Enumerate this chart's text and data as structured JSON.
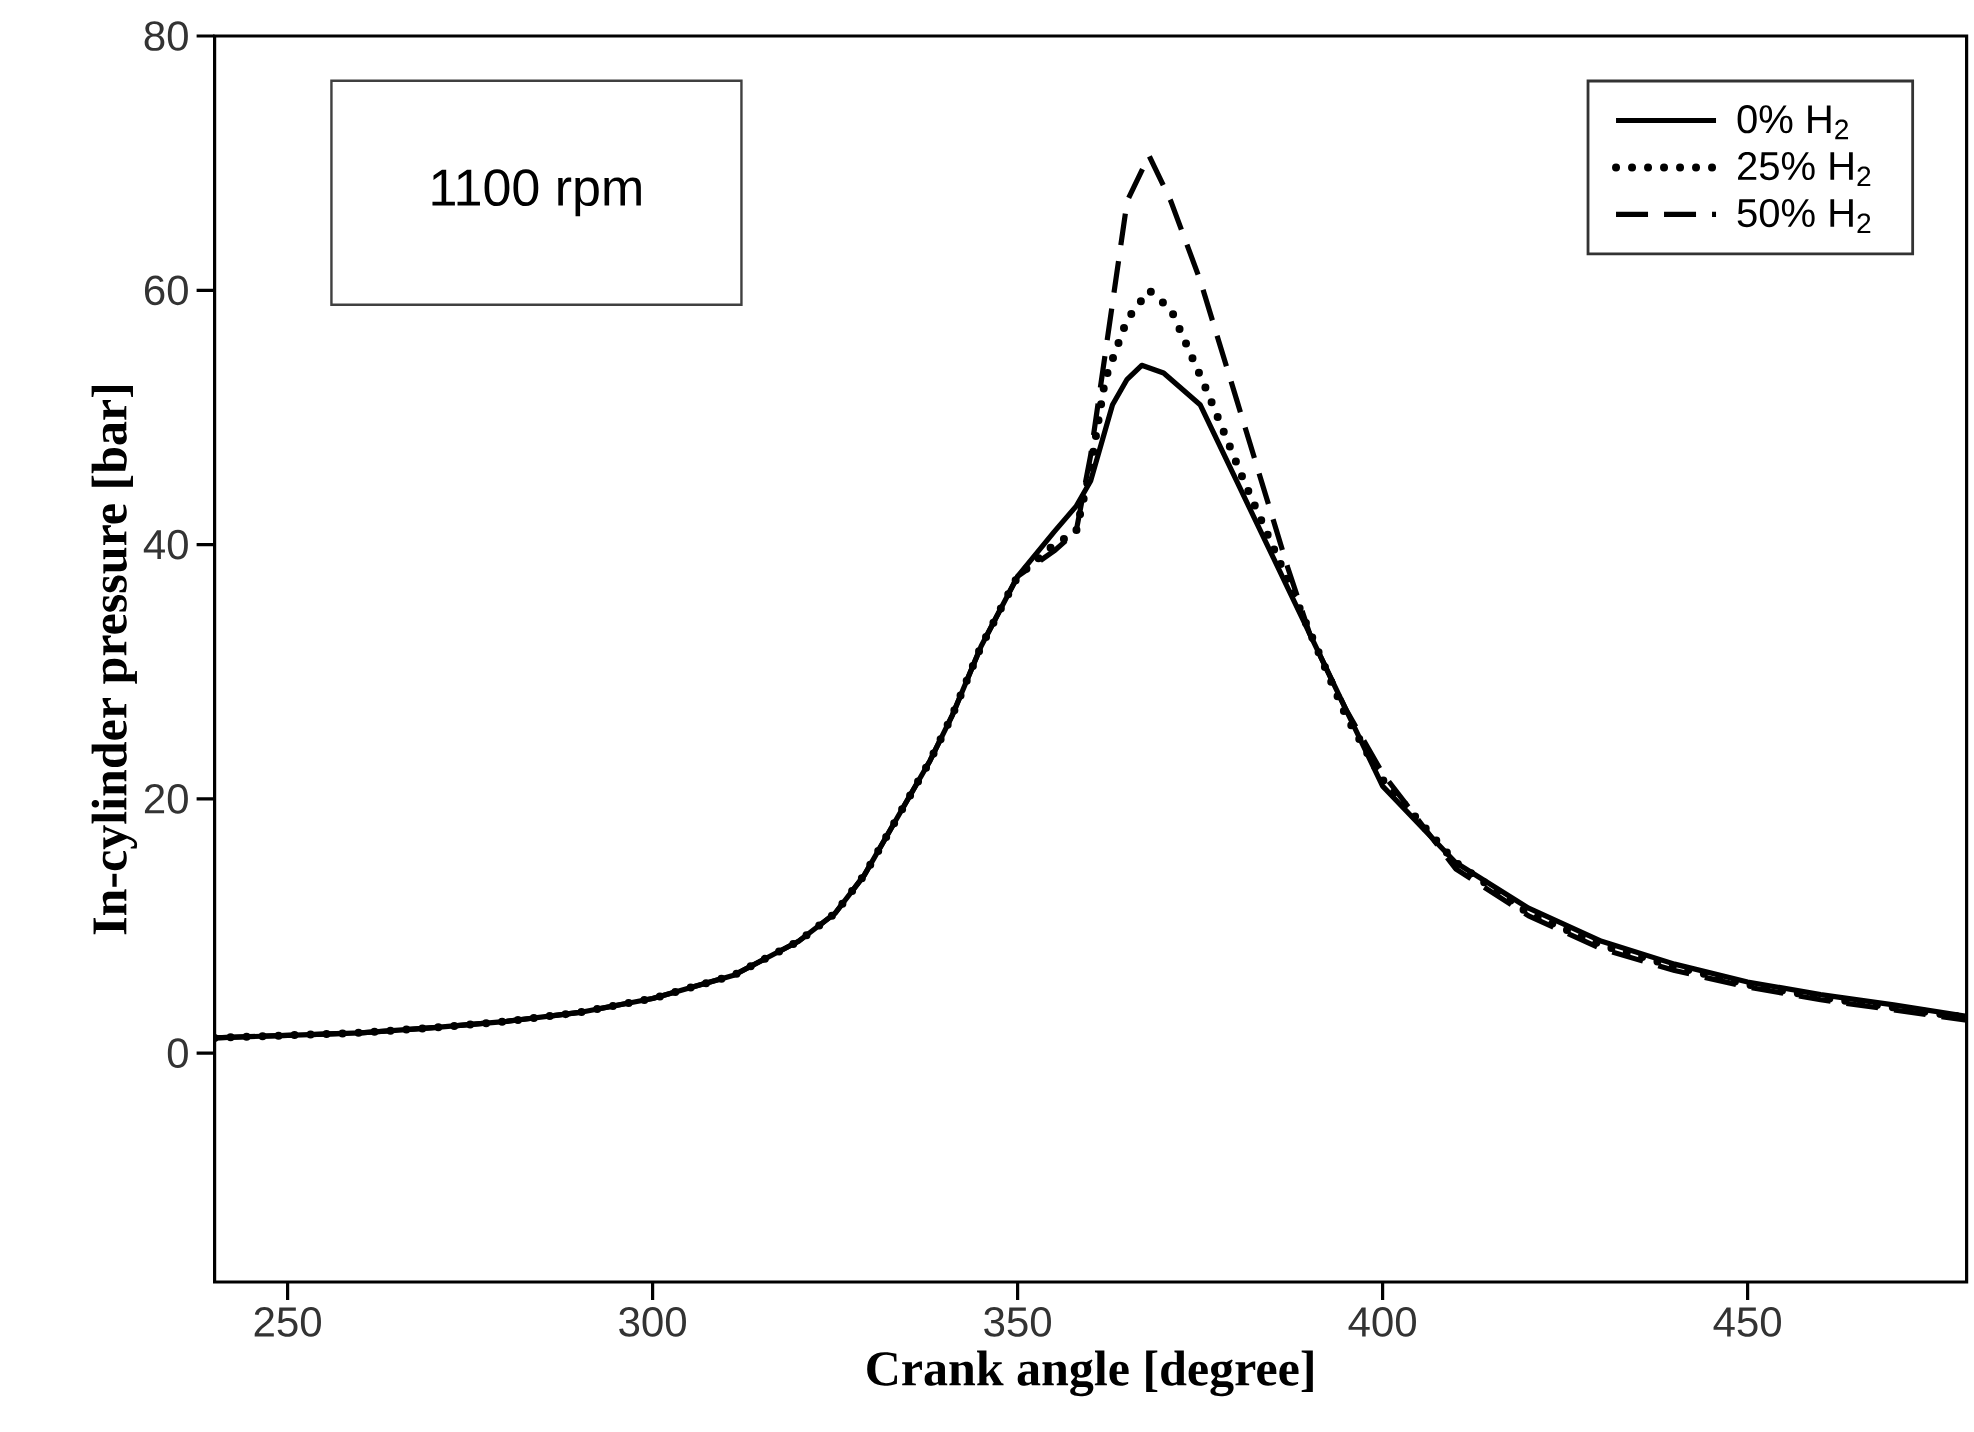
{
  "chart_data": {
    "type": "line",
    "xlabel": "Crank angle [degree]",
    "ylabel": "In-cylinder pressure [bar]",
    "annotations": [
      "1100 rpm"
    ],
    "xlim": [
      240,
      480
    ],
    "xticks": [
      250,
      300,
      350,
      400,
      450
    ],
    "ylim": [
      -18,
      80
    ],
    "yticks": [
      0,
      20,
      40,
      60,
      80
    ],
    "grid": false,
    "legend": "top right",
    "marker": "none",
    "series": [
      {
        "name": "0% H$_{2}$",
        "color": "#000000",
        "line_style": "solid",
        "x": [
          240,
          250,
          260,
          270,
          280,
          290,
          300,
          311,
          320,
          325,
          329,
          333,
          338,
          341,
          345,
          350,
          355,
          358,
          360,
          363,
          365,
          367,
          370,
          375,
          380,
          387,
          395,
          400,
          410,
          420,
          430,
          440,
          450,
          460,
          470,
          480
        ],
        "values": [
          1.2,
          1.4,
          1.6,
          2.0,
          2.5,
          3.2,
          4.3,
          6.1,
          8.8,
          11,
          14,
          18,
          23,
          26.5,
          32,
          37.5,
          41,
          43,
          45,
          51,
          53,
          54.1,
          53.5,
          51,
          45,
          36.6,
          27,
          21,
          15,
          11.4,
          8.8,
          7,
          5.6,
          4.6,
          3.8,
          2.9
        ]
      },
      {
        "name": "25% H$_{2}$",
        "color": "#000000",
        "line_style": "dotted",
        "x": [
          240,
          250,
          260,
          270,
          280,
          290,
          300,
          311,
          320,
          325,
          329,
          333,
          338,
          341,
          345,
          350,
          355,
          358,
          360,
          362,
          365,
          368,
          371,
          376,
          381,
          387,
          389,
          395,
          400,
          410,
          420,
          430,
          440,
          450,
          460,
          470,
          480
        ],
        "values": [
          1.2,
          1.4,
          1.6,
          2.0,
          2.5,
          3.2,
          4.3,
          6.1,
          8.8,
          11,
          14,
          18,
          23,
          26.5,
          32,
          37.5,
          40,
          41,
          46,
          53,
          57.7,
          60,
          58.5,
          52,
          45,
          37.2,
          34.5,
          26.5,
          21.5,
          15,
          11,
          8.5,
          6.8,
          5.4,
          4.4,
          3.6,
          2.8
        ]
      },
      {
        "name": "50% H$_{2}$",
        "color": "#000000",
        "line_style": "dashed",
        "x": [
          240,
          250,
          260,
          270,
          280,
          290,
          300,
          311,
          320,
          325,
          329,
          333,
          338,
          341,
          345,
          350,
          355,
          358,
          360,
          362,
          365,
          368,
          371,
          375,
          380,
          387,
          390,
          395,
          400,
          410,
          420,
          430,
          440,
          450,
          460,
          470,
          480
        ],
        "values": [
          1.2,
          1.4,
          1.6,
          2.0,
          2.5,
          3.2,
          4.3,
          6.1,
          8.8,
          11,
          14,
          18,
          23,
          26.5,
          32,
          37.5,
          39.5,
          41,
          47,
          55,
          67,
          70.6,
          67,
          60.8,
          51.4,
          38.2,
          33,
          27,
          22,
          14.5,
          10.8,
          8.2,
          6.5,
          5.2,
          4.2,
          3.4,
          2.6
        ]
      }
    ]
  }
}
